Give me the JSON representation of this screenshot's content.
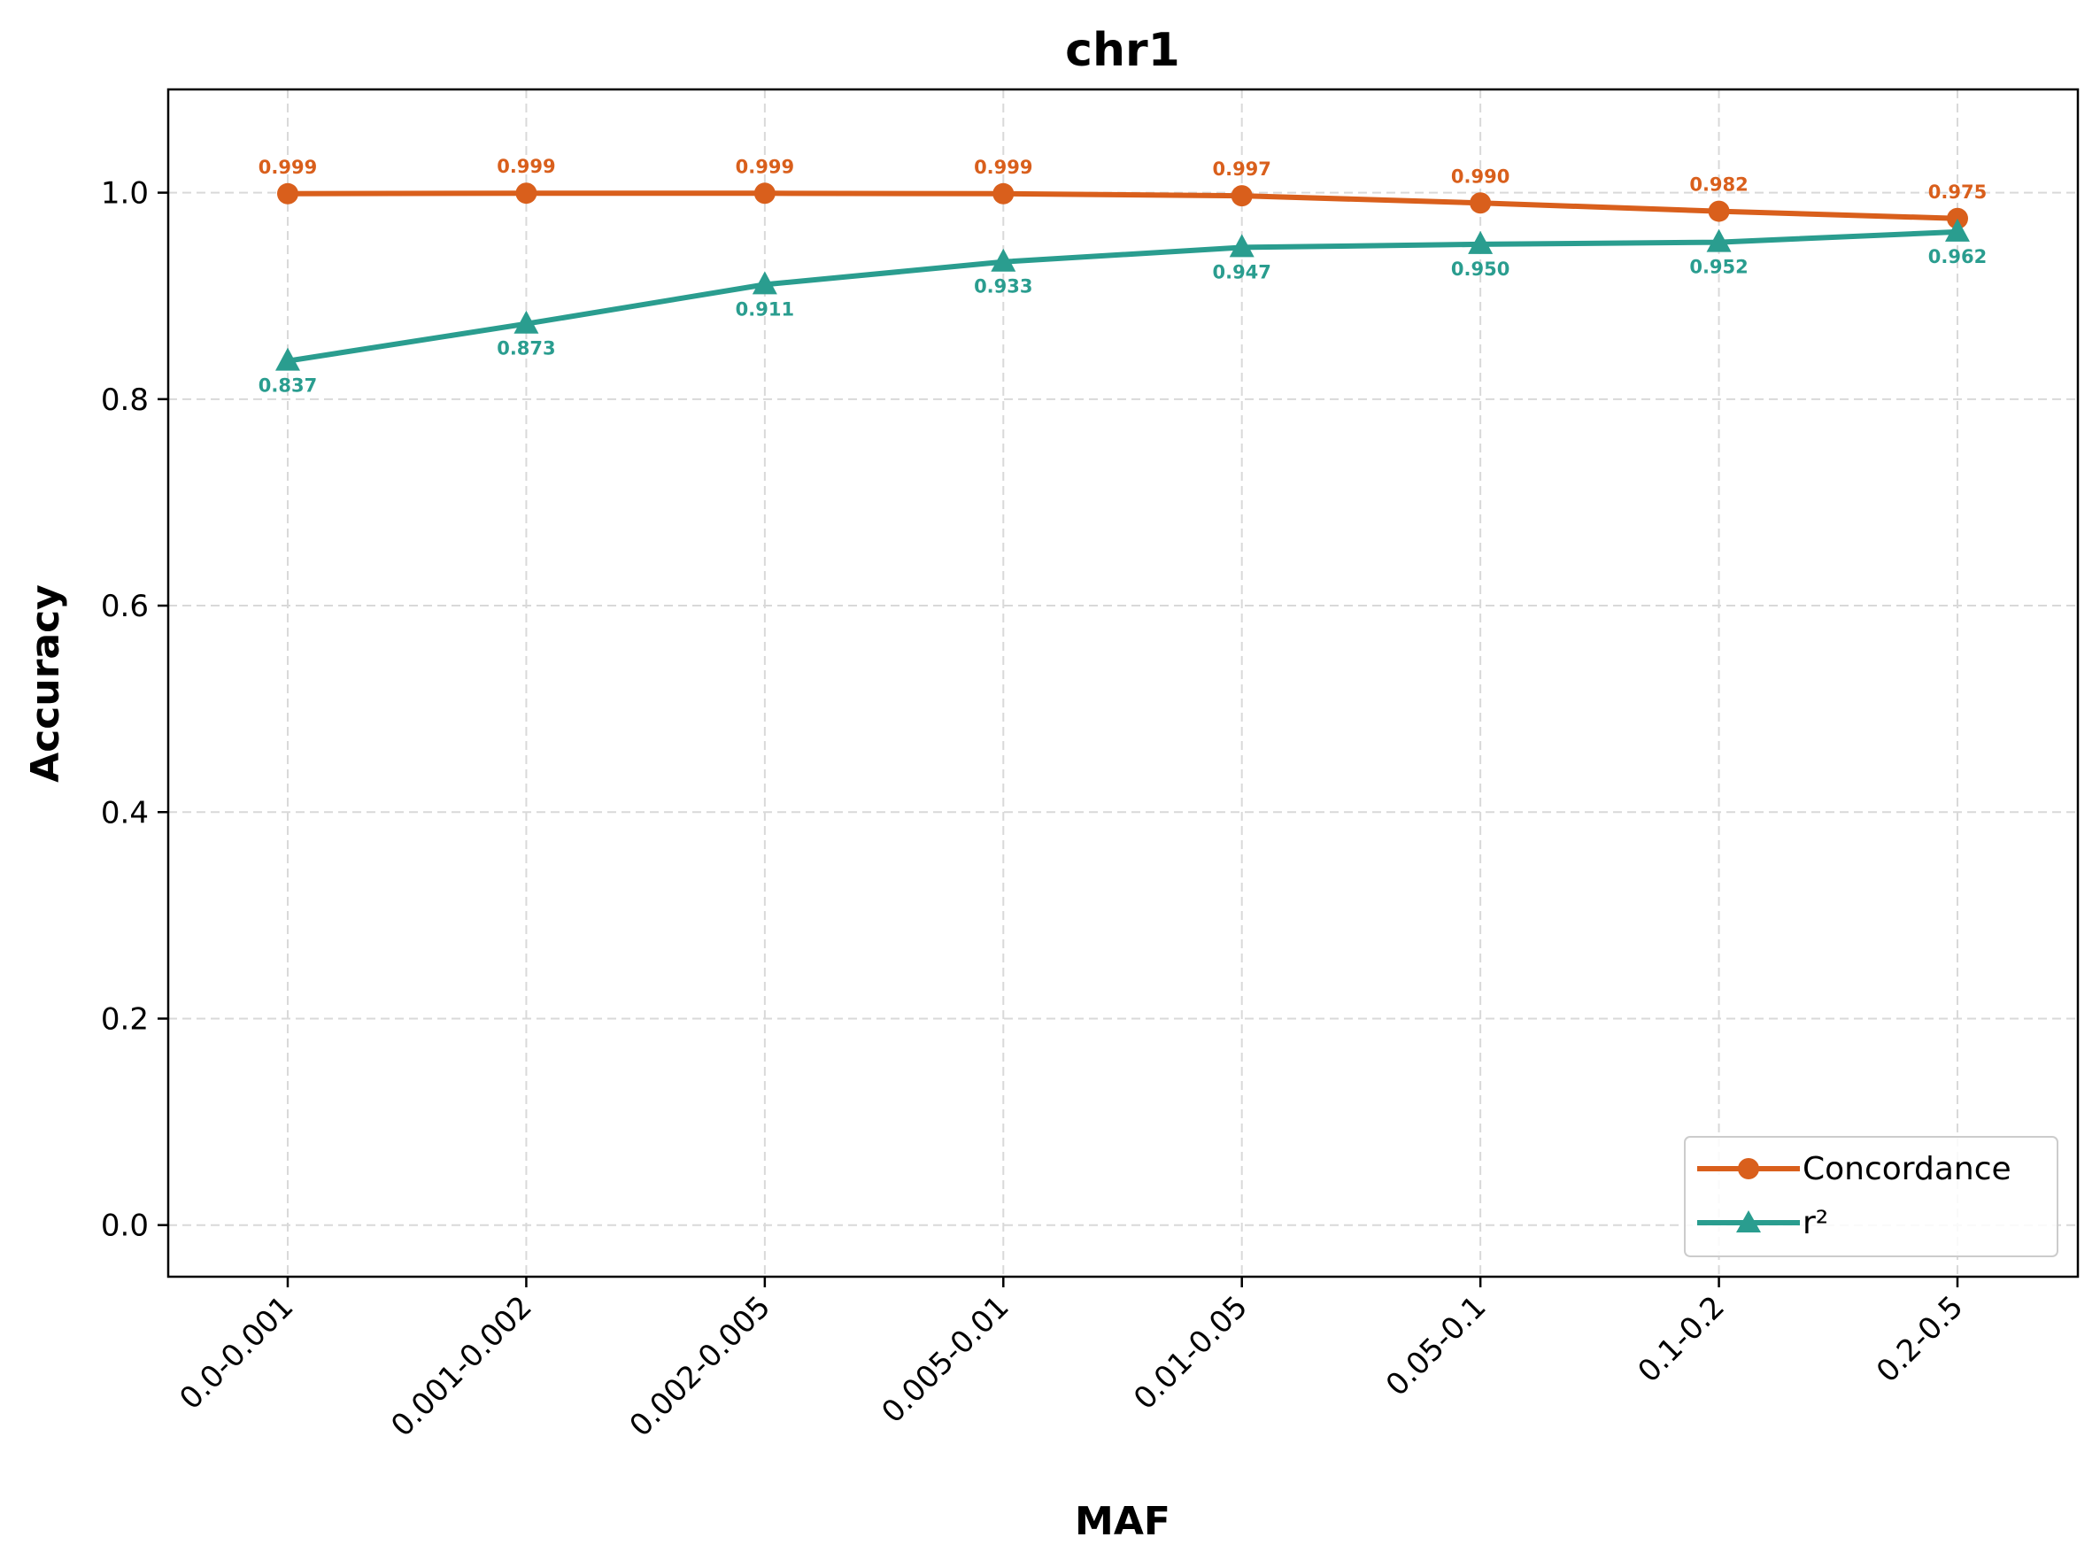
{
  "chart_data": {
    "type": "line",
    "title": "chr1",
    "xlabel": "MAF",
    "ylabel": "Accuracy",
    "ylim": [
      -0.05,
      1.1
    ],
    "yticks": [
      "0.0",
      "0.2",
      "0.4",
      "0.6",
      "0.8",
      "1.0"
    ],
    "ytick_values": [
      0.0,
      0.2,
      0.4,
      0.6,
      0.8,
      1.0
    ],
    "categories": [
      "0.0-0.001",
      "0.001-0.002",
      "0.002-0.005",
      "0.005-0.01",
      "0.01-0.05",
      "0.05-0.1",
      "0.1-0.2",
      "0.2-0.5"
    ],
    "grid": true,
    "legend_position": "lower-right",
    "series": [
      {
        "name": "Concordance",
        "marker": "circle",
        "color": "#d95f1c",
        "values": [
          0.999,
          0.9995,
          0.9994,
          0.999,
          0.997,
          0.99,
          0.982,
          0.975
        ],
        "labels": [
          "0.999",
          "0.999",
          "0.999",
          "0.999",
          "0.997",
          "0.990",
          "0.982",
          "0.975"
        ]
      },
      {
        "name": "r²",
        "marker": "triangle",
        "color": "#2a9d8f",
        "values": [
          0.837,
          0.873,
          0.911,
          0.933,
          0.947,
          0.95,
          0.952,
          0.962
        ],
        "labels": [
          "0.837",
          "0.873",
          "0.911",
          "0.933",
          "0.947",
          "0.950",
          "0.952",
          "0.962"
        ]
      }
    ]
  }
}
